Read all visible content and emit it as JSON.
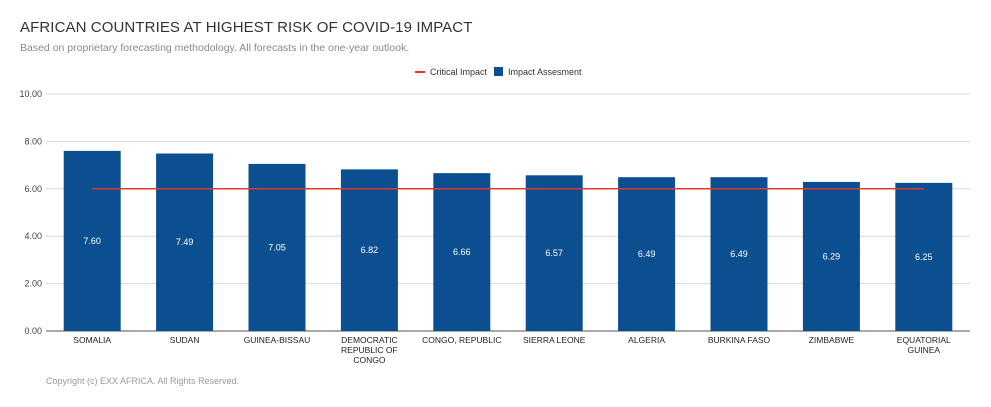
{
  "chart_data": {
    "type": "bar",
    "title": "AFRICAN COUNTRIES AT HIGHEST RISK OF COVID-19 IMPACT",
    "subtitle": "Based on proprietary forecasting methodology. All forecasts in the one-year outlook.",
    "categories": [
      "SOMALIA",
      "SUDAN",
      "GUINEA-BISSAU",
      "DEMOCRATIC REPUBLIC OF CONGO",
      "CONGO, REPUBLIC",
      "SIERRA LEONE",
      "ALGERIA",
      "BURKINA FASO",
      "ZIMBABWE",
      "EQUATORIAL GUINEA"
    ],
    "category_lines": [
      [
        "SOMALIA"
      ],
      [
        "SUDAN"
      ],
      [
        "GUINEA-BISSAU"
      ],
      [
        "DEMOCRATIC",
        "REPUBLIC OF",
        "CONGO"
      ],
      [
        "CONGO, REPUBLIC"
      ],
      [
        "SIERRA LEONE"
      ],
      [
        "ALGERIA"
      ],
      [
        "BURKINA FASO"
      ],
      [
        "ZIMBABWE"
      ],
      [
        "EQUATORIAL",
        "GUINEA"
      ]
    ],
    "series": [
      {
        "name": "Impact Assesment",
        "type": "bar",
        "color": "#0b4f91",
        "values": [
          7.6,
          7.49,
          7.05,
          6.82,
          6.66,
          6.57,
          6.49,
          6.49,
          6.29,
          6.25
        ],
        "labels": [
          "7.60",
          "7.49",
          "7.05",
          "6.82",
          "6.66",
          "6.57",
          "6.49",
          "6.49",
          "6.29",
          "6.25"
        ]
      },
      {
        "name": "Critical Impact",
        "type": "line",
        "color": "#e03a2f",
        "values": [
          6,
          6,
          6,
          6,
          6,
          6,
          6,
          6,
          6,
          6
        ]
      }
    ],
    "ylim": [
      0,
      10
    ],
    "yticks": [
      "0.00",
      "2.00",
      "4.00",
      "6.00",
      "8.00",
      "10.00"
    ],
    "ytick_values": [
      0,
      2,
      4,
      6,
      8,
      10
    ],
    "grid": true,
    "legend_position": "top-center",
    "xlabel": "",
    "ylabel": ""
  },
  "footer": "Copyright (c) EXX AFRICA. All Rights Reserved."
}
